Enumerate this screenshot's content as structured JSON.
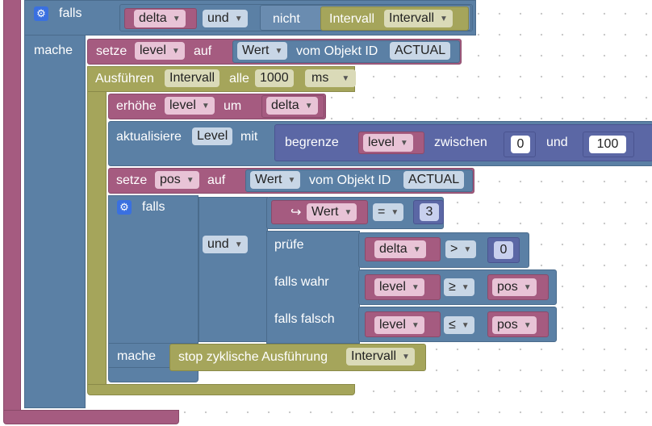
{
  "blocks": {
    "outer_if": {
      "falls": "falls",
      "mache": "mache",
      "var_delta": "delta",
      "op_und": "und",
      "nicht": "nicht",
      "intervall_label": "Intervall",
      "intervall_var": "Intervall"
    },
    "setze_level": {
      "setze": "setze",
      "var": "level",
      "auf": "auf",
      "wert": "Wert",
      "vom": "vom Objekt ID",
      "id": "ACTUAL"
    },
    "interval": {
      "ausfuehren": "Ausführen",
      "var": "Intervall",
      "alle": "alle",
      "value": "1000",
      "unit": "ms"
    },
    "erhoehe": {
      "label": "erhöhe",
      "var": "level",
      "um": "um",
      "delta": "delta"
    },
    "aktualisiere": {
      "label": "aktualisiere",
      "name": "Level",
      "mit": "mit",
      "begrenze": "begrenze",
      "var": "level",
      "zwischen": "zwischen",
      "min": "0",
      "und": "und",
      "max": "100"
    },
    "setze_pos": {
      "setze": "setze",
      "var": "pos",
      "auf": "auf",
      "wert": "Wert",
      "vom": "vom Objekt ID",
      "id": "ACTUAL"
    },
    "inner_if": {
      "falls": "falls",
      "mache": "mache",
      "und": "und",
      "cond1": {
        "wert": "Wert",
        "op": "=",
        "value": "3"
      },
      "pruefe": "prüfe",
      "cond2": {
        "var": "delta",
        "op": ">",
        "value": "0"
      },
      "falls_wahr": "falls wahr",
      "cond3": {
        "var": "level",
        "op": "≥",
        "var2": "pos"
      },
      "falls_falsch": "falls falsch",
      "cond4": {
        "var": "level",
        "op": "≤",
        "var2": "pos"
      }
    },
    "stop": {
      "label": "stop zyklische Ausführung",
      "var": "Intervall"
    }
  },
  "colors": {
    "logic": "#5b80a5",
    "variables": "#a55b80",
    "timers": "#a5a55b",
    "math": "#5b67a5"
  },
  "icons": {
    "gear": "gear-icon",
    "dropdown": "dropdown-arrow-icon",
    "arrow": "return-arrow-icon"
  }
}
